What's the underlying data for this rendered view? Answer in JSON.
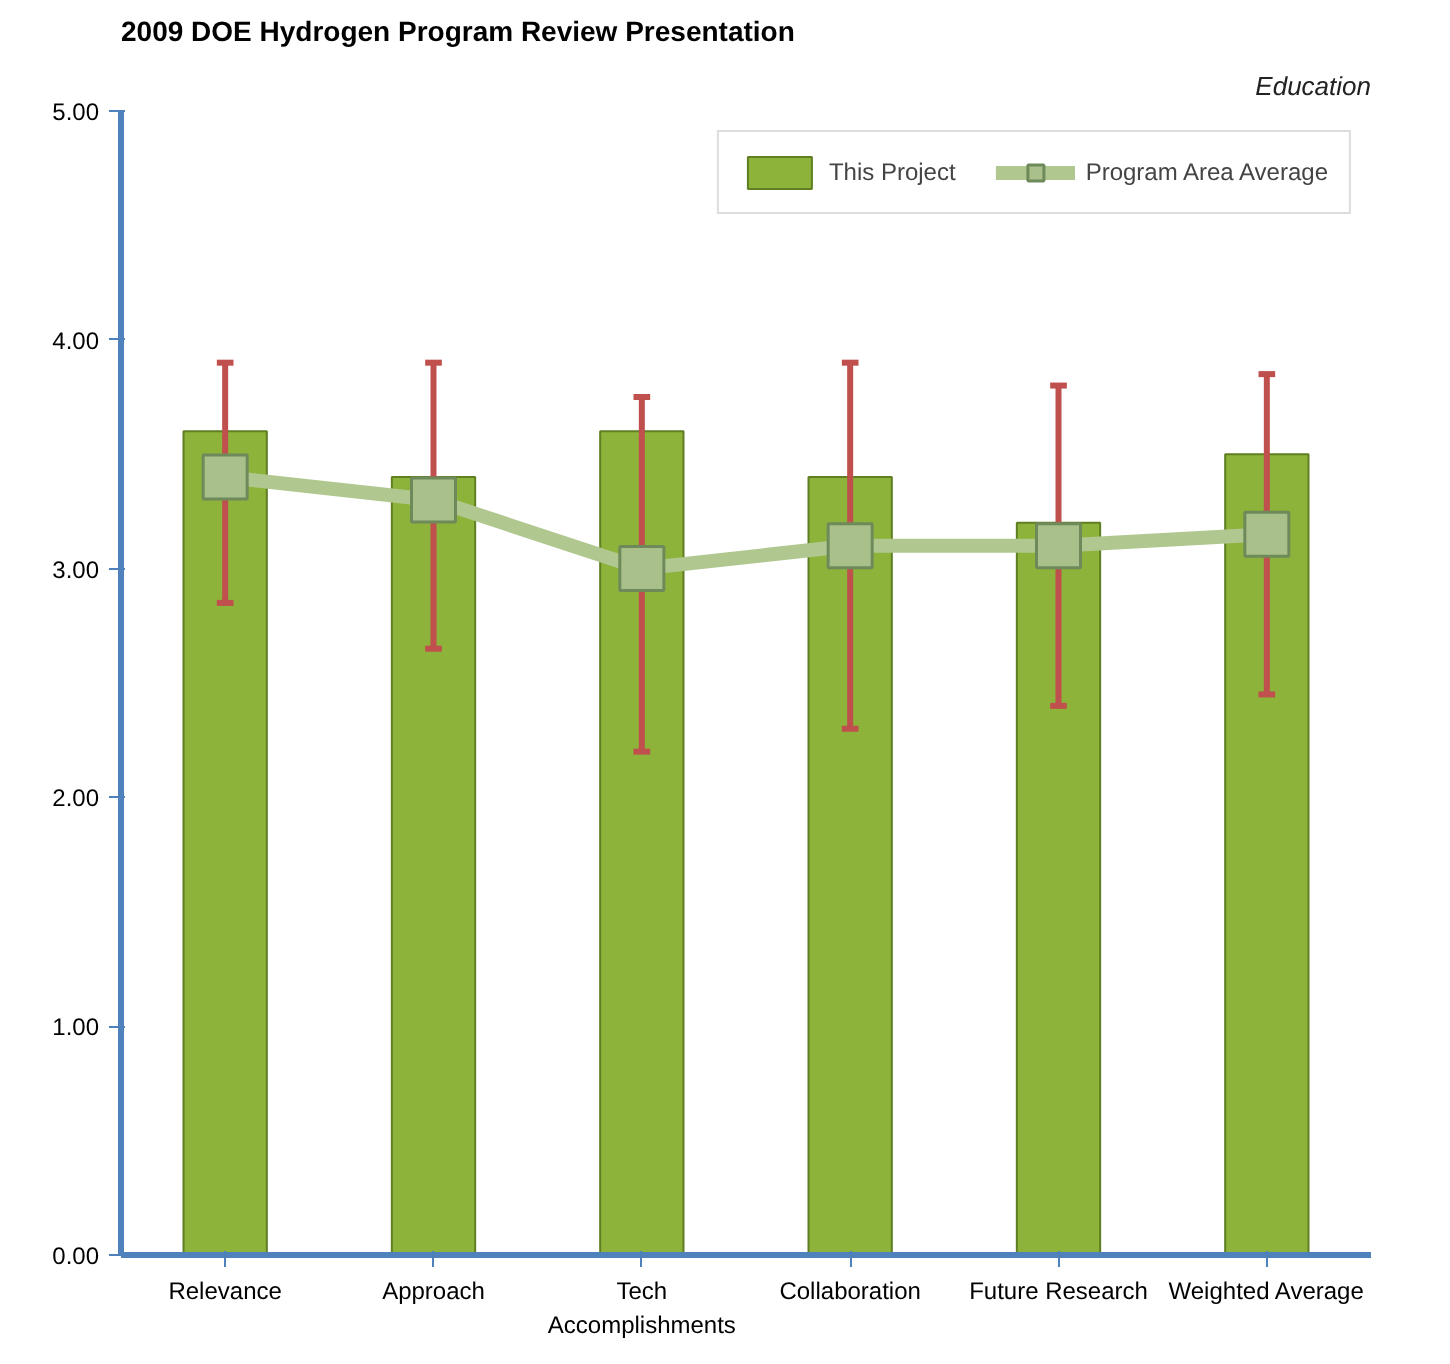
{
  "chart_data": {
    "type": "bar",
    "title": "2009 DOE Hydrogen Program Review Presentation",
    "subtitle": "Education",
    "categories": [
      "Relevance",
      "Approach",
      "Tech Accomplishments",
      "Collaboration",
      "Future Research",
      "Weighted Average"
    ],
    "series": [
      {
        "name": "This Project",
        "color": "#8db33a",
        "values": [
          3.6,
          3.4,
          3.6,
          3.4,
          3.2,
          3.5
        ],
        "errors": [
          [
            2.85,
            3.9
          ],
          [
            2.65,
            3.9
          ],
          [
            2.2,
            3.75
          ],
          [
            2.3,
            3.9
          ],
          [
            2.4,
            3.8
          ],
          [
            2.45,
            3.85
          ]
        ]
      },
      {
        "name": "Program Area Average",
        "type": "line",
        "color": "#b0c890",
        "marker": "square",
        "values": [
          3.4,
          3.3,
          3.0,
          3.1,
          3.1,
          3.15
        ]
      }
    ],
    "ylim": [
      0,
      5
    ],
    "yticks": [
      {
        "value": 0,
        "label": "0.00"
      },
      {
        "value": 1,
        "label": "1.00"
      },
      {
        "value": 2,
        "label": "2.00"
      },
      {
        "value": 3,
        "label": "3.00"
      },
      {
        "value": 4,
        "label": "4.00"
      },
      {
        "value": 5,
        "label": "5.00"
      }
    ],
    "grid": false,
    "legend": "top right"
  }
}
